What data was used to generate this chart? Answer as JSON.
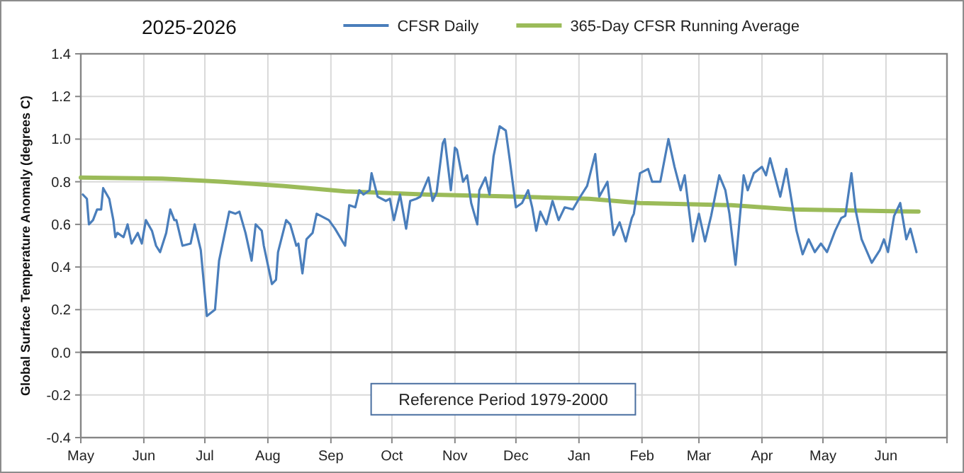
{
  "chart_data": {
    "type": "line",
    "title": "2025-2026",
    "ylabel": "Global Surface Temperature Anomaly (degrees C)",
    "annotations": [
      "Reference Period 1979-2000"
    ],
    "xlim": [
      "2025-05-01",
      "2026-07-01"
    ],
    "xticks": [
      {
        "value": "2025-05-01",
        "label": "May"
      },
      {
        "value": "2025-06-01",
        "label": "Jun"
      },
      {
        "value": "2025-07-01",
        "label": "Jul"
      },
      {
        "value": "2025-08-01",
        "label": "Aug"
      },
      {
        "value": "2025-09-01",
        "label": "Sep"
      },
      {
        "value": "2025-10-01",
        "label": "Oct"
      },
      {
        "value": "2025-11-01",
        "label": "Nov"
      },
      {
        "value": "2025-12-01",
        "label": "Dec"
      },
      {
        "value": "2026-01-01",
        "label": "Jan"
      },
      {
        "value": "2026-02-01",
        "label": "Feb"
      },
      {
        "value": "2026-03-01",
        "label": "Mar"
      },
      {
        "value": "2026-04-01",
        "label": "Apr"
      },
      {
        "value": "2026-05-01",
        "label": "May"
      },
      {
        "value": "2026-06-01",
        "label": "Jun"
      },
      {
        "value": "2026-07-01",
        "label": null
      }
    ],
    "ylim": [
      -0.4,
      1.4
    ],
    "yticks": [
      -0.4,
      -0.2,
      {
        "value": 0,
        "label": "0.0"
      },
      0.2,
      0.4,
      0.6,
      0.8,
      {
        "value": 1,
        "label": "1.0"
      },
      1.2,
      1.4
    ],
    "grid": true,
    "legend": "top",
    "marker": "none",
    "line_style": "solid",
    "ref_lines": [
      {
        "axis": "y",
        "value": 0,
        "color": "#707070"
      }
    ],
    "series": [
      {
        "name": "CFSR Daily",
        "color": "#4a7ebb",
        "x": [
          "2025-05-02",
          "2025-05-04",
          "2025-05-05",
          "2025-05-07",
          "2025-05-09",
          "2025-05-11",
          "2025-05-12",
          "2025-05-15",
          "2025-05-17",
          "2025-05-18",
          "2025-05-19",
          "2025-05-22",
          "2025-05-24",
          "2025-05-26",
          "2025-05-29",
          "2025-05-31",
          "2025-06-02",
          "2025-06-05",
          "2025-06-07",
          "2025-06-09",
          "2025-06-12",
          "2025-06-14",
          "2025-06-16",
          "2025-06-17",
          "2025-06-20",
          "2025-06-24",
          "2025-06-26",
          "2025-06-29",
          "2025-07-02",
          "2025-07-06",
          "2025-07-08",
          "2025-07-13",
          "2025-07-16",
          "2025-07-18",
          "2025-07-21",
          "2025-07-24",
          "2025-07-26",
          "2025-07-29",
          "2025-07-30",
          "2025-08-03",
          "2025-08-05",
          "2025-08-06",
          "2025-08-10",
          "2025-08-12",
          "2025-08-15",
          "2025-08-16",
          "2025-08-18",
          "2025-08-20",
          "2025-08-23",
          "2025-08-25",
          "2025-08-27",
          "2025-08-31",
          "2025-09-03",
          "2025-09-08",
          "2025-09-10",
          "2025-09-13",
          "2025-09-15",
          "2025-09-17",
          "2025-09-20",
          "2025-09-21",
          "2025-09-24",
          "2025-09-28",
          "2025-09-30",
          "2025-10-02",
          "2025-10-05",
          "2025-10-08",
          "2025-10-10",
          "2025-10-13",
          "2025-10-15",
          "2025-10-19",
          "2025-10-21",
          "2025-10-23",
          "2025-10-26",
          "2025-10-27",
          "2025-10-30",
          "2025-11-01",
          "2025-11-02",
          "2025-11-05",
          "2025-11-07",
          "2025-11-09",
          "2025-11-12",
          "2025-11-13",
          "2025-11-16",
          "2025-11-18",
          "2025-11-20",
          "2025-11-23",
          "2025-11-26",
          "2025-11-28",
          "2025-12-01",
          "2025-12-04",
          "2025-12-07",
          "2025-12-09",
          "2025-12-11",
          "2025-12-13",
          "2025-12-16",
          "2025-12-19",
          "2025-12-22",
          "2025-12-25",
          "2025-12-29",
          "2026-01-01",
          "2026-01-05",
          "2026-01-09",
          "2026-01-11",
          "2026-01-15",
          "2026-01-18",
          "2026-01-21",
          "2026-01-24",
          "2026-01-27",
          "2026-01-28",
          "2026-01-31",
          "2026-02-04",
          "2026-02-06",
          "2026-02-10",
          "2026-02-14",
          "2026-02-17",
          "2026-02-20",
          "2026-02-22",
          "2026-02-26",
          "2026-03-01",
          "2026-03-04",
          "2026-03-07",
          "2026-03-11",
          "2026-03-14",
          "2026-03-16",
          "2026-03-19",
          "2026-03-23",
          "2026-03-25",
          "2026-03-28",
          "2026-04-01",
          "2026-04-03",
          "2026-04-05",
          "2026-04-10",
          "2026-04-13",
          "2026-04-18",
          "2026-04-21",
          "2026-04-24",
          "2026-04-27",
          "2026-04-30",
          "2026-05-03",
          "2026-05-07",
          "2026-05-10",
          "2026-05-12",
          "2026-05-15",
          "2026-05-17",
          "2026-05-20",
          "2026-05-25",
          "2026-05-29",
          "2026-05-31",
          "2026-06-02",
          "2026-06-05",
          "2026-06-08",
          "2026-06-11",
          "2026-06-13",
          "2026-06-16"
        ],
        "values": [
          0.74,
          0.72,
          0.6,
          0.62,
          0.67,
          0.67,
          0.77,
          0.72,
          0.62,
          0.54,
          0.56,
          0.54,
          0.6,
          0.51,
          0.56,
          0.51,
          0.62,
          0.57,
          0.5,
          0.47,
          0.56,
          0.67,
          0.62,
          0.62,
          0.5,
          0.51,
          0.6,
          0.48,
          0.17,
          0.2,
          0.43,
          0.66,
          0.65,
          0.66,
          0.56,
          0.43,
          0.6,
          0.57,
          0.5,
          0.32,
          0.34,
          0.47,
          0.62,
          0.6,
          0.5,
          0.51,
          0.37,
          0.53,
          0.56,
          0.65,
          0.64,
          0.62,
          0.58,
          0.5,
          0.69,
          0.68,
          0.76,
          0.74,
          0.76,
          0.84,
          0.73,
          0.71,
          0.72,
          0.62,
          0.74,
          0.58,
          0.71,
          0.72,
          0.73,
          0.82,
          0.71,
          0.75,
          0.98,
          1.0,
          0.76,
          0.96,
          0.95,
          0.8,
          0.83,
          0.7,
          0.6,
          0.76,
          0.82,
          0.74,
          0.92,
          1.06,
          1.04,
          0.9,
          0.68,
          0.7,
          0.76,
          0.68,
          0.57,
          0.66,
          0.6,
          0.71,
          0.62,
          0.68,
          0.67,
          0.72,
          0.78,
          0.93,
          0.73,
          0.8,
          0.55,
          0.61,
          0.52,
          0.63,
          0.65,
          0.84,
          0.86,
          0.8,
          0.8,
          1.0,
          0.87,
          0.76,
          0.83,
          0.52,
          0.65,
          0.52,
          0.64,
          0.83,
          0.76,
          0.65,
          0.41,
          0.83,
          0.76,
          0.84,
          0.87,
          0.83,
          0.91,
          0.73,
          0.86,
          0.57,
          0.46,
          0.53,
          0.47,
          0.51,
          0.47,
          0.57,
          0.63,
          0.64,
          0.84,
          0.67,
          0.53,
          0.42,
          0.48,
          0.53,
          0.47,
          0.64,
          0.7,
          0.53,
          0.58,
          0.47
        ]
      },
      {
        "name": "365-Day CFSR Running Average",
        "color": "#9bbb59",
        "x": [
          "2025-05-01",
          "2025-06-10",
          "2025-07-10",
          "2025-08-09",
          "2025-09-08",
          "2025-10-18",
          "2025-12-02",
          "2026-01-06",
          "2026-01-31",
          "2026-03-17",
          "2026-04-16",
          "2026-06-17"
        ],
        "values": [
          0.82,
          0.815,
          0.8,
          0.78,
          0.755,
          0.74,
          0.73,
          0.72,
          0.7,
          0.69,
          0.67,
          0.66
        ]
      }
    ]
  }
}
